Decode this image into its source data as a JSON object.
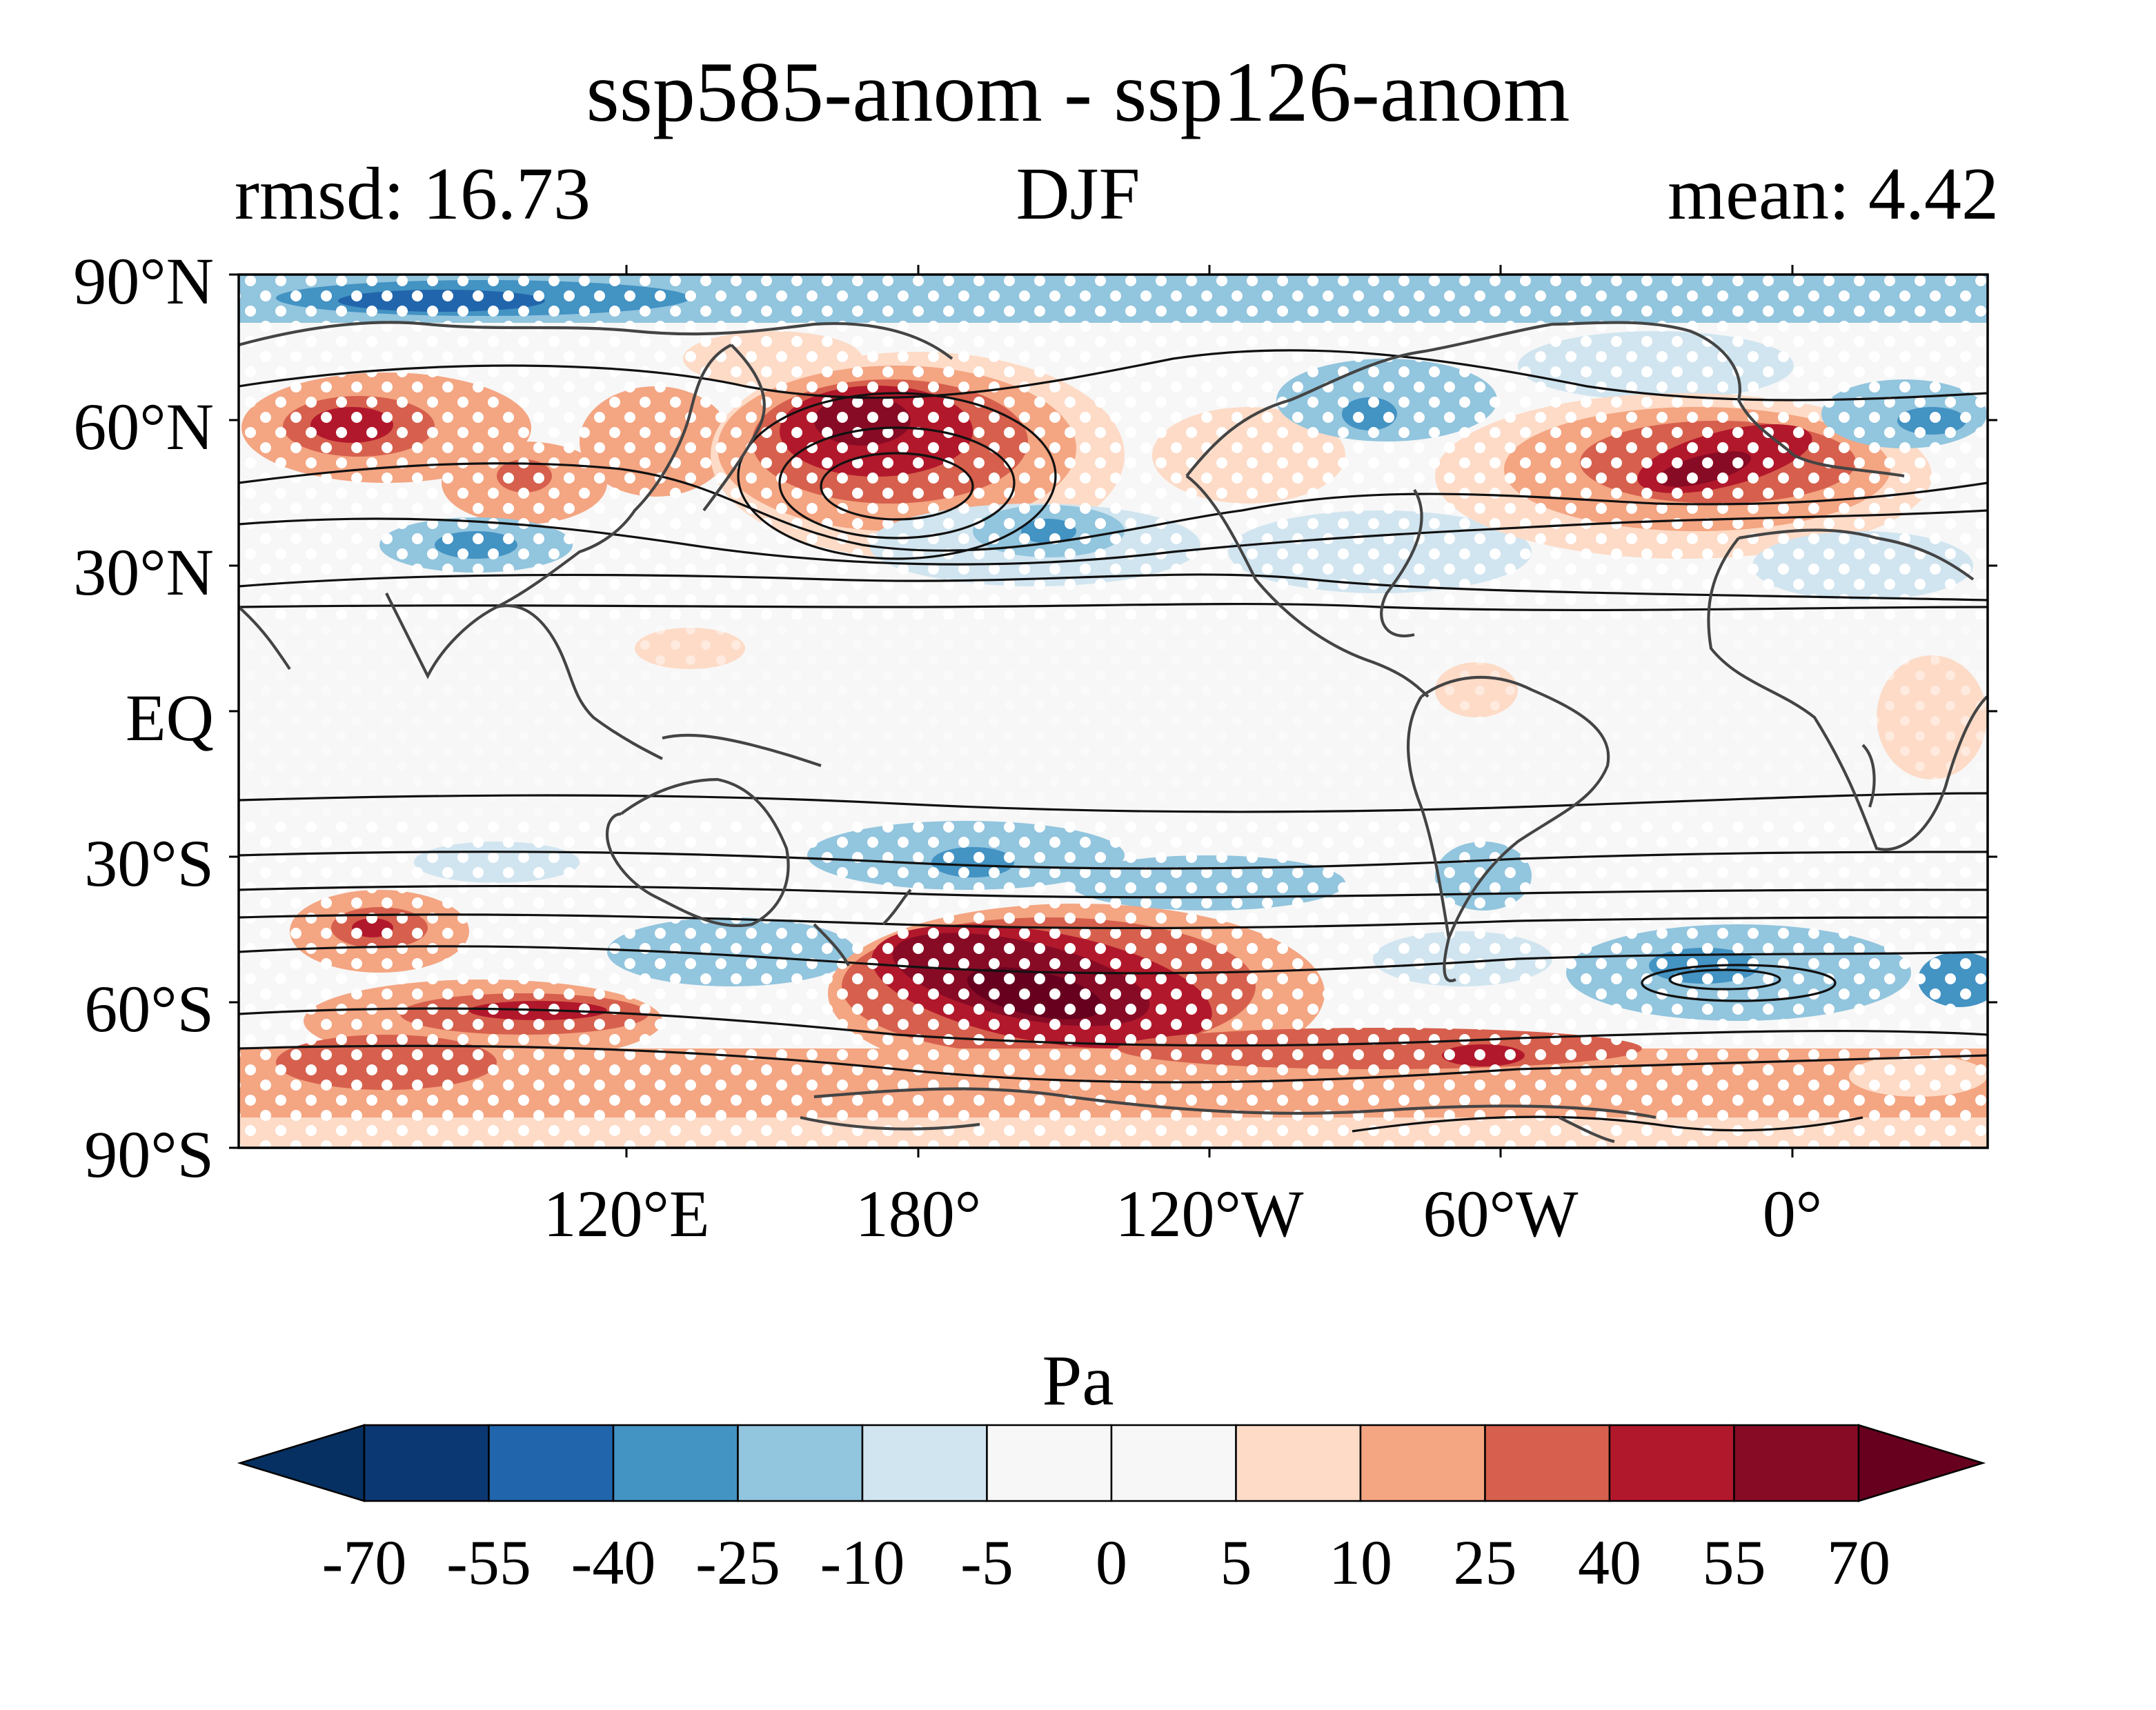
{
  "figure": {
    "title": "ssp585-anom - ssp126-anom",
    "subtitle_left": "rmsd: 16.73",
    "subtitle_center": "DJF",
    "subtitle_right": "mean: 4.42"
  },
  "map": {
    "projection": "PlateCarree, central longitude ~150°W",
    "lat_ticks": [
      "90°N",
      "60°N",
      "30°N",
      "EQ",
      "30°S",
      "60°S",
      "90°S"
    ],
    "lon_ticks": [
      "120°E",
      "180°",
      "120°W",
      "60°W",
      "0°"
    ],
    "stippling": "white dots mark significant regions",
    "overlay": "black contour lines (climatological field) and coastlines"
  },
  "colorbar": {
    "unit": "Pa",
    "extend": "both",
    "levels": [
      "-70",
      "-55",
      "-40",
      "-25",
      "-10",
      "-5",
      "0",
      "5",
      "10",
      "25",
      "40",
      "55",
      "70"
    ],
    "colors": [
      "#053061",
      "#0b3872",
      "#2166ac",
      "#4393c3",
      "#92c5de",
      "#d1e5f0",
      "#f7f7f7",
      "#f7f7f7",
      "#fddbc7",
      "#f4a582",
      "#d6604d",
      "#b2182b",
      "#880b25",
      "#67001f"
    ]
  }
}
